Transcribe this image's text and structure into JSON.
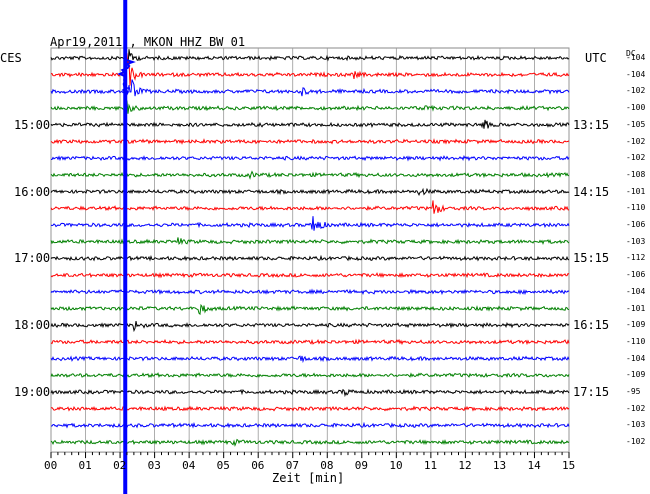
{
  "header": {
    "title": "Apr19,2011 , MKON HHZ BW 01",
    "left_tz": "CES",
    "right_tz": "UTC",
    "dc_label": "DC"
  },
  "chart_data": {
    "type": "line",
    "title": "Apr19,2011 , MKON HHZ BW 01",
    "xlabel": "Zeit [min]",
    "xlim": [
      0,
      15
    ],
    "x_ticks": [
      "00",
      "01",
      "02",
      "03",
      "04",
      "05",
      "06",
      "07",
      "08",
      "09",
      "10",
      "11",
      "12",
      "13",
      "14",
      "15"
    ],
    "grid": true,
    "line_count": 24,
    "line_colors": [
      "#000000",
      "#ff0000",
      "#0000ff",
      "#008000"
    ],
    "left_time_labels": [
      {
        "line": 4,
        "text": "15:00"
      },
      {
        "line": 8,
        "text": "16:00"
      },
      {
        "line": 12,
        "text": "17:00"
      },
      {
        "line": 16,
        "text": "18:00"
      },
      {
        "line": 20,
        "text": "19:00"
      }
    ],
    "right_time_labels": [
      {
        "line": 4,
        "text": "13:15"
      },
      {
        "line": 8,
        "text": "14:15"
      },
      {
        "line": 12,
        "text": "15:15"
      },
      {
        "line": 16,
        "text": "16:15"
      },
      {
        "line": 20,
        "text": "17:15"
      }
    ],
    "dc_values": [
      "-104",
      "-104",
      "-102",
      "-100",
      "-105",
      "-102",
      "-102",
      "-108",
      "-101",
      "-110",
      "-106",
      "-103",
      "-112",
      "-106",
      "-104",
      "-101",
      "-109",
      "-110",
      "-104",
      "-109",
      "-95",
      "-102",
      "-103",
      "-102"
    ],
    "events": [
      {
        "line": 0,
        "minute": 2.2,
        "amp": 12
      },
      {
        "line": 1,
        "minute": 2.2,
        "amp": 20
      },
      {
        "line": 2,
        "minute": 2.3,
        "amp": 16
      },
      {
        "line": 3,
        "minute": 2.2,
        "amp": 6
      },
      {
        "line": 1,
        "minute": 8.8,
        "amp": 3
      },
      {
        "line": 2,
        "minute": 7.3,
        "amp": 3
      },
      {
        "line": 3,
        "minute": 10.8,
        "amp": 3
      },
      {
        "line": 4,
        "minute": 12.5,
        "amp": 7
      },
      {
        "line": 7,
        "minute": 5.8,
        "amp": 2
      },
      {
        "line": 8,
        "minute": 10.7,
        "amp": 3
      },
      {
        "line": 9,
        "minute": 11.1,
        "amp": 8
      },
      {
        "line": 10,
        "minute": 7.6,
        "amp": 14
      },
      {
        "line": 11,
        "minute": 3.7,
        "amp": 3
      },
      {
        "line": 15,
        "minute": 4.3,
        "amp": 6
      },
      {
        "line": 16,
        "minute": 2.4,
        "amp": 5
      },
      {
        "line": 18,
        "minute": 7.2,
        "amp": 3
      },
      {
        "line": 20,
        "minute": 8.5,
        "amp": 3
      },
      {
        "line": 23,
        "minute": 5.3,
        "amp": 2
      }
    ],
    "main_quake": {
      "minute": 2.15,
      "color": "#0000ff"
    }
  }
}
